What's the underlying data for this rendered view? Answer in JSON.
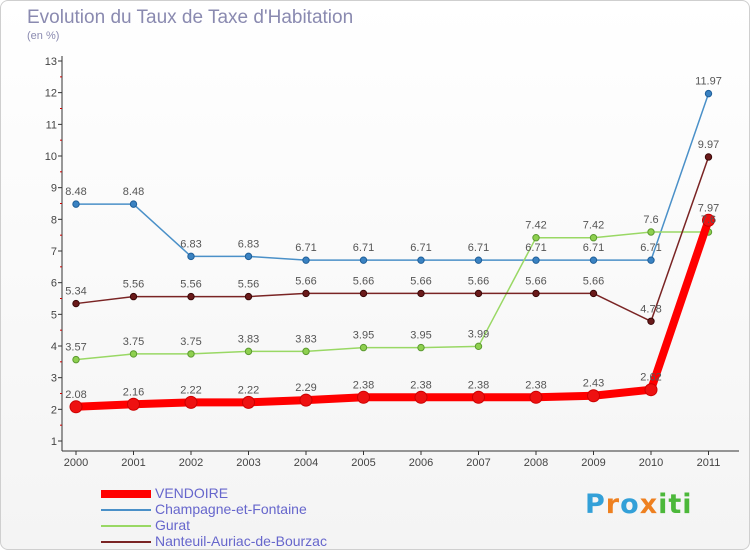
{
  "header": {
    "title": "Evolution du Taux de Taxe d'Habitation",
    "unit": "(en %)"
  },
  "logo": {
    "text": "Proxiti",
    "letters": [
      "P",
      "r",
      "o",
      "x",
      "i",
      "t",
      "i"
    ],
    "colors": [
      "#33a0d8",
      "#ee8020",
      "#33a0d8",
      "#ee8020",
      "#4cb83a",
      "#4cb83a",
      "#4cb83a"
    ]
  },
  "chart_data": {
    "type": "line",
    "title": "Evolution du Taux de Taxe d'Habitation",
    "ylabel": "(en %)",
    "xlabel": "",
    "x": [
      "2000",
      "2001",
      "2002",
      "2003",
      "2004",
      "2005",
      "2006",
      "2007",
      "2008",
      "2009",
      "2010",
      "2011"
    ],
    "ylim": [
      1,
      13
    ],
    "yticks": [
      "1",
      "2",
      "3",
      "4",
      "5",
      "6",
      "7",
      "8",
      "9",
      "10",
      "11",
      "12",
      "13"
    ],
    "grid": false,
    "legend_position": "bottom-left",
    "series": [
      {
        "name": "VENDOIRE",
        "color": "#ff0000",
        "values": [
          2.08,
          2.16,
          2.22,
          2.22,
          2.29,
          2.38,
          2.38,
          2.38,
          2.38,
          2.43,
          2.62,
          7.97
        ],
        "labels": [
          "2.08",
          "2.16",
          "2.22",
          "2.22",
          "2.29",
          "2.38",
          "2.38",
          "2.38",
          "2.38",
          "2.43",
          "2.62",
          "7.97"
        ]
      },
      {
        "name": "Champagne-et-Fontaine",
        "color": "#4a90c8",
        "values": [
          8.48,
          8.48,
          6.83,
          6.83,
          6.71,
          6.71,
          6.71,
          6.71,
          6.71,
          6.71,
          6.71,
          11.97
        ],
        "labels": [
          "8.48",
          "8.48",
          "6.83",
          "6.83",
          "6.71",
          "6.71",
          "6.71",
          "6.71",
          "6.71",
          "6.71",
          "6.71",
          "11.97"
        ]
      },
      {
        "name": "Gurat",
        "color": "#99d864",
        "values": [
          3.57,
          3.75,
          3.75,
          3.83,
          3.83,
          3.95,
          3.95,
          3.99,
          7.42,
          7.42,
          7.6,
          7.6
        ],
        "labels": [
          "3.57",
          "3.75",
          "3.75",
          "3.83",
          "3.83",
          "3.95",
          "3.95",
          "3.99",
          "7.42",
          "7.42",
          "7.6",
          "7.6"
        ]
      },
      {
        "name": "Nanteuil-Auriac-de-Bourzac",
        "color": "#7a2424",
        "values": [
          5.34,
          5.56,
          5.56,
          5.56,
          5.66,
          5.66,
          5.66,
          5.66,
          5.66,
          5.66,
          4.78,
          9.97
        ],
        "labels": [
          "5.34",
          "5.56",
          "5.56",
          "5.56",
          "5.66",
          "5.66",
          "5.66",
          "5.66",
          "5.66",
          "5.66",
          "4.78",
          "9.97"
        ]
      }
    ]
  }
}
